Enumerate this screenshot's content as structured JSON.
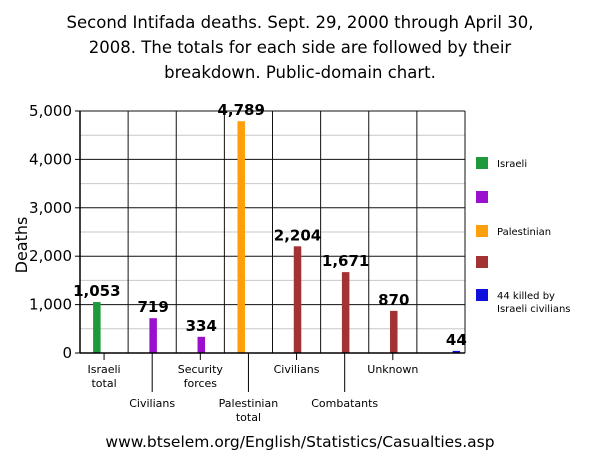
{
  "chart_data": {
    "type": "bar",
    "title": "Second Intifada deaths. Sept. 29, 2000 through April 30, 2008. The totals for each side are followed by their breakdown. Public-domain chart.",
    "xlabel": "",
    "ylabel": "Deaths",
    "ylim": [
      0,
      5000
    ],
    "yticks": [
      "0",
      "1,000",
      "2,000",
      "3,000",
      "4,000",
      "5,000"
    ],
    "grid": true,
    "legend_position": "right",
    "categories": [
      "Israeli total",
      "Civilians",
      "Security forces",
      "Palestinian total",
      "Civilians",
      "Combatants",
      "Unknown",
      ""
    ],
    "category_lines": [
      [
        "Israeli",
        "total"
      ],
      [
        "Civilians"
      ],
      [
        "Security",
        "forces"
      ],
      [
        "Palestinian",
        "total"
      ],
      [
        "Civilians"
      ],
      [
        "Combatants"
      ],
      [
        "Unknown"
      ],
      [
        ""
      ]
    ],
    "values": [
      1053,
      719,
      334,
      4789,
      2204,
      1671,
      870,
      44
    ],
    "data_labels": [
      "1,053",
      "719",
      "334",
      "4,789",
      "2,204",
      "1,671",
      "870",
      "44"
    ],
    "bar_colors": [
      "#1e9a3c",
      "#9b10cc",
      "#9b10cc",
      "#ff9f0a",
      "#a33232",
      "#a33232",
      "#a33232",
      "#1010dd"
    ],
    "legend": [
      {
        "label": "Israeli",
        "lines": [
          "Israeli"
        ],
        "color": "#1e9a3c"
      },
      {
        "label": "",
        "lines": [],
        "color": "#9b10cc"
      },
      {
        "label": "Palestinian",
        "lines": [
          "Palestinian"
        ],
        "color": "#ff9f0a"
      },
      {
        "label": "",
        "lines": [],
        "color": "#a33232"
      },
      {
        "label": "44 killed by Israeli civilians",
        "lines": [
          "44 killed by",
          "Israeli civilians"
        ],
        "color": "#1010dd"
      }
    ]
  },
  "source_url": "www.btselem.org/English/Statistics/Casualties.asp"
}
